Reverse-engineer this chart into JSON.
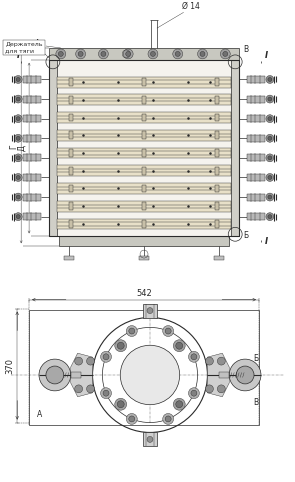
{
  "bg_color": "#ffffff",
  "lc": "#2a2a2a",
  "dim_label_phi": "Ø 14",
  "dim_label_542": "542",
  "dim_label_370": "370",
  "label_G": "Г",
  "label_D": "Д",
  "label_A": "A",
  "label_B": "Б",
  "label_V": "В",
  "label_I": "I",
  "label_holder": "Держатель\nдля тяги"
}
